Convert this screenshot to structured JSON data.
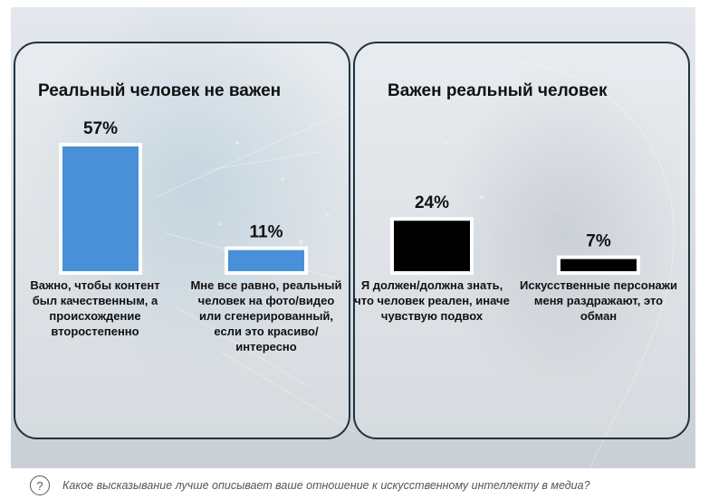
{
  "question": "Какое высказывание лучше описывает ваше отношение к искусственному интеллекту в медиа?",
  "colors": {
    "left_bar": "#4a90d9",
    "right_bar": "#000000",
    "bar_border": "#ffffff"
  },
  "icons": {
    "question": "question-mark-icon"
  },
  "chart_data": [
    {
      "type": "bar",
      "title": "Реальный человек не важен",
      "ylim": [
        0,
        57
      ],
      "categories": [
        "Важно, чтобы контент был качественным, а происхождение второстепенно",
        "Мне все равно, реальный человек на фото/видео или сгенерированный, если это красиво/интересно"
      ],
      "values": [
        57,
        11
      ],
      "data_labels": [
        "57%",
        "11%"
      ],
      "color": "#4a90d9"
    },
    {
      "type": "bar",
      "title": "Важен реальный человек",
      "ylim": [
        0,
        57
      ],
      "categories": [
        "Я должен/должна знать, что человек реален, иначе чувствую подвох",
        "Искусственные персонажи меня раздражают, это обман"
      ],
      "values": [
        24,
        7
      ],
      "data_labels": [
        "24%",
        "7%"
      ],
      "color": "#000000"
    }
  ]
}
